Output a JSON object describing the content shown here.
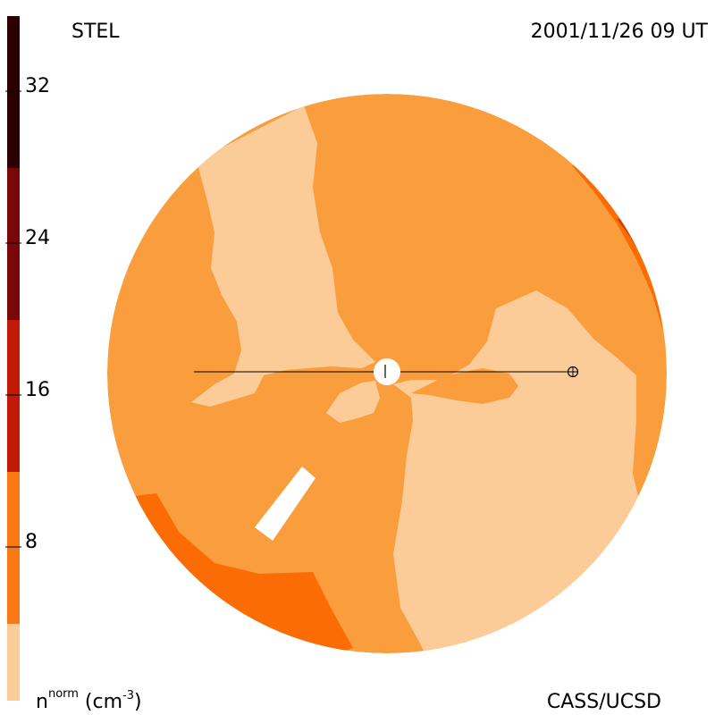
{
  "header": {
    "left_label": "STEL",
    "right_label": "2001/11/26 09 UT"
  },
  "footer": {
    "left_label_base": "n",
    "left_label_sup": "norm",
    "left_label_units": " (cm",
    "left_label_units_sup": "-3",
    "left_label_close": ")",
    "right_label": "CASS/UCSD"
  },
  "colorbar": {
    "ticks": [
      "32",
      "24",
      "16",
      "8"
    ],
    "colors": [
      "#fccc98",
      "#f89838",
      "#fc6c04",
      "#e04c0c",
      "#c01a0a",
      "#900c0c",
      "#6c0404",
      "#2c0000"
    ]
  },
  "colors": {
    "level1": "#fccc98",
    "level2": "#f89c3c",
    "level3": "#fc6c04",
    "level4": "#c84408",
    "sun": "#ffffff",
    "line": "#000000"
  }
}
